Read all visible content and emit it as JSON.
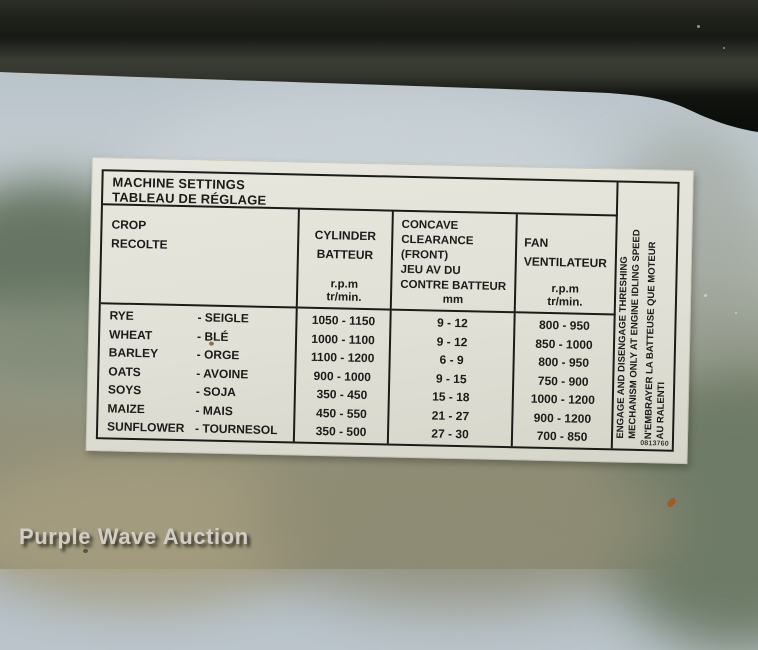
{
  "scene": {
    "watermark": "Purple Wave Auction",
    "description": "machine settings decal on equipment cab window"
  },
  "decal": {
    "title_en": "MACHINE SETTINGS",
    "title_fr": "TABLEAU DE RÉGLAGE",
    "part_number": "0813760",
    "columns": {
      "crop": {
        "en": "CROP",
        "fr": "RECOLTE"
      },
      "cylinder": {
        "en": "CYLINDER",
        "fr": "BATTEUR",
        "unit1": "r.p.m",
        "unit2": "tr/min."
      },
      "concave": {
        "lines": [
          "CONCAVE",
          "CLEARANCE",
          "(FRONT)",
          "JEU AV DU",
          "CONTRE BATTEUR"
        ],
        "unit": "mm"
      },
      "fan": {
        "en": "FAN",
        "fr": "VENTILATEUR",
        "unit1": "r.p.m",
        "unit2": "tr/min."
      }
    },
    "rows": [
      {
        "crop_en": "RYE",
        "crop_fr": "- SEIGLE",
        "cylinder": "1050 - 1150",
        "concave": "9 - 12",
        "fan": "800 - 950"
      },
      {
        "crop_en": "WHEAT",
        "crop_fr": "- BLÉ",
        "cylinder": "1000 - 1100",
        "concave": "9 - 12",
        "fan": "850 - 1000"
      },
      {
        "crop_en": "BARLEY",
        "crop_fr": "- ORGE",
        "cylinder": "1100 - 1200",
        "concave": "6 - 9",
        "fan": "800 - 950"
      },
      {
        "crop_en": "OATS",
        "crop_fr": "- AVOINE",
        "cylinder": "900 - 1000",
        "concave": "9 - 15",
        "fan": "750 - 900"
      },
      {
        "crop_en": "SOYS",
        "crop_fr": "- SOJA",
        "cylinder": "350 - 450",
        "concave": "15 - 18",
        "fan": "1000 - 1200"
      },
      {
        "crop_en": "MAIZE",
        "crop_fr": "- MAIS",
        "cylinder": "450 - 550",
        "concave": "21 - 27",
        "fan": "900 - 1200"
      },
      {
        "crop_en": "SUNFLOWER",
        "crop_fr": "- TOURNESOL",
        "cylinder": "350 - 500",
        "concave": "27 - 30",
        "fan": "700 - 850"
      }
    ],
    "side_warning": {
      "en_line1": "ENGAGE AND DISENGAGE THRESHING",
      "en_line2": "MECHANISM ONLY AT ENGINE IDLING SPEED",
      "fr_line1": "N'EMBRAYER LA BATTEUSE QUE MOTEUR",
      "fr_line2": "AU RALENTI"
    }
  },
  "colors": {
    "label_bg": "#e3e2d9",
    "label_text": "#1b1b19",
    "window_frame": "#14160f",
    "sky": "#c0cacf",
    "field_olive": "#8e8c75",
    "watermark_text": "#d2cec5"
  }
}
